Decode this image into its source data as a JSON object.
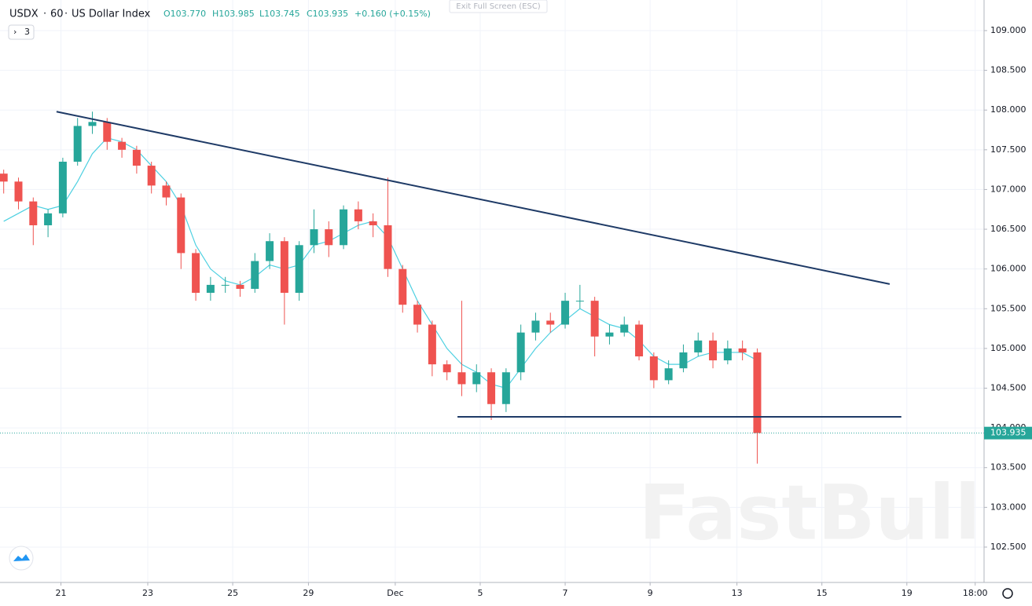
{
  "chart_data": {
    "type": "candlestick",
    "symbol": "USDX",
    "interval": "60",
    "title": "US Dollar Index",
    "ohlc_text": [
      "O103.770",
      "H103.985",
      "L103.745",
      "C103.935"
    ],
    "change_text": "+0.160 (+0.15%)",
    "fullscreen_hint": "Exit Full Screen (ESC)",
    "indicator_count": "3",
    "watermark": "FastBull",
    "up_color": "#26a69a",
    "down_color": "#ef5350",
    "x": [
      2,
      10,
      18,
      26,
      34,
      42,
      50,
      58,
      66,
      74,
      82,
      90,
      98,
      106,
      114,
      122,
      130,
      138,
      146,
      154,
      162,
      170,
      178,
      186,
      194,
      202,
      210,
      218,
      226,
      234,
      242,
      250,
      258,
      266,
      274,
      282,
      290,
      298,
      306,
      314,
      322,
      330,
      338,
      346,
      354,
      362,
      370,
      378,
      386,
      394,
      402,
      410
    ],
    "open": [
      107.2,
      107.1,
      106.85,
      106.55,
      106.7,
      107.35,
      107.8,
      107.85,
      107.6,
      107.5,
      107.3,
      107.05,
      106.9,
      106.2,
      105.7,
      105.8,
      105.8,
      105.75,
      106.1,
      106.35,
      105.7,
      106.3,
      106.5,
      106.3,
      106.75,
      106.6,
      106.55,
      106.0,
      105.55,
      105.3,
      104.8,
      104.7,
      104.55,
      104.7,
      104.3,
      104.7,
      105.2,
      105.35,
      105.3,
      105.6,
      105.6,
      105.15,
      105.2,
      105.3,
      104.9,
      104.6,
      104.75,
      104.95,
      105.1,
      104.85,
      105.0,
      104.95
    ],
    "high": [
      107.25,
      107.15,
      106.9,
      106.75,
      107.4,
      107.9,
      107.98,
      107.9,
      107.65,
      107.55,
      107.35,
      107.1,
      106.95,
      106.25,
      105.9,
      105.9,
      105.85,
      106.2,
      106.45,
      106.4,
      106.35,
      106.75,
      106.6,
      106.8,
      106.85,
      106.7,
      107.15,
      106.05,
      105.6,
      105.35,
      104.85,
      105.6,
      104.8,
      104.75,
      104.75,
      105.3,
      105.45,
      105.45,
      105.7,
      105.8,
      105.65,
      105.3,
      105.4,
      105.35,
      104.95,
      104.85,
      105.05,
      105.2,
      105.2,
      105.1,
      105.1,
      105.0
    ],
    "low": [
      106.95,
      106.75,
      106.3,
      106.4,
      106.65,
      107.3,
      107.7,
      107.5,
      107.4,
      107.2,
      106.95,
      106.8,
      106.0,
      105.6,
      105.6,
      105.7,
      105.65,
      105.7,
      106.0,
      105.3,
      105.6,
      106.2,
      106.15,
      106.25,
      106.5,
      106.4,
      105.9,
      105.45,
      105.2,
      104.65,
      104.6,
      104.4,
      104.45,
      104.1,
      104.2,
      104.6,
      105.1,
      105.2,
      105.25,
      105.5,
      104.9,
      105.05,
      105.15,
      104.85,
      104.5,
      104.55,
      104.7,
      104.9,
      104.75,
      104.8,
      104.85,
      103.55
    ],
    "close": [
      107.1,
      106.85,
      106.55,
      106.7,
      107.35,
      107.8,
      107.85,
      107.6,
      107.5,
      107.3,
      107.05,
      106.9,
      106.2,
      105.7,
      105.8,
      105.8,
      105.75,
      106.1,
      106.35,
      105.7,
      106.3,
      106.5,
      106.3,
      106.75,
      106.6,
      106.55,
      106.0,
      105.55,
      105.3,
      104.8,
      104.7,
      104.55,
      104.7,
      104.3,
      104.7,
      105.2,
      105.35,
      105.3,
      105.6,
      105.6,
      105.15,
      105.2,
      105.3,
      104.9,
      104.6,
      104.75,
      104.95,
      105.1,
      104.85,
      105.0,
      104.95,
      103.935
    ],
    "ma": {
      "color": "#4dd0e1",
      "values": [
        106.6,
        106.7,
        106.8,
        106.75,
        106.8,
        107.1,
        107.45,
        107.65,
        107.6,
        107.5,
        107.3,
        107.1,
        106.8,
        106.3,
        106.0,
        105.85,
        105.8,
        105.9,
        106.05,
        106.0,
        106.05,
        106.3,
        106.35,
        106.45,
        106.55,
        106.6,
        106.4,
        106.0,
        105.6,
        105.3,
        105.0,
        104.8,
        104.7,
        104.55,
        104.5,
        104.75,
        105.0,
        105.2,
        105.35,
        105.5,
        105.4,
        105.3,
        105.25,
        105.1,
        104.9,
        104.8,
        104.8,
        104.9,
        104.95,
        104.95,
        104.95,
        104.85
      ]
    },
    "lines": [
      {
        "color": "#1e3a66",
        "x": [
          30.6,
          481.7
        ],
        "y": [
          107.98,
          105.81
        ]
      },
      {
        "color": "#1e3a66",
        "x": [
          247.7,
          488
        ],
        "y": [
          104.14,
          104.14
        ]
      }
    ],
    "last_price": 103.935,
    "last_price_color": "#26a69a",
    "xlim": [
      0,
      532.8
    ],
    "ylim": [
      102.055,
      109.385
    ],
    "grid": true,
    "xticks": [
      {
        "value": 33,
        "label": "21"
      },
      {
        "value": 80,
        "label": "23"
      },
      {
        "value": 126,
        "label": "25"
      },
      {
        "value": 167,
        "label": "29"
      },
      {
        "value": 214,
        "label": "Dec"
      },
      {
        "value": 260,
        "label": "5"
      },
      {
        "value": 306,
        "label": "7"
      },
      {
        "value": 352,
        "label": "9"
      },
      {
        "value": 399,
        "label": "13"
      },
      {
        "value": 445,
        "label": "15"
      },
      {
        "value": 491,
        "label": "19"
      },
      {
        "value": 528,
        "label": "18:00"
      }
    ],
    "yticks": [
      {
        "value": 102.5,
        "label": "102.500"
      },
      {
        "value": 103,
        "label": "103.000"
      },
      {
        "value": 103.5,
        "label": "103.500"
      },
      {
        "value": 104,
        "label": "104.000"
      },
      {
        "value": 104.5,
        "label": "104.500"
      },
      {
        "value": 105,
        "label": "105.000"
      },
      {
        "value": 105.5,
        "label": "105.500"
      },
      {
        "value": 106,
        "label": "106.000"
      },
      {
        "value": 106.5,
        "label": "106.500"
      },
      {
        "value": 107,
        "label": "107.000"
      },
      {
        "value": 107.5,
        "label": "107.500"
      },
      {
        "value": 108,
        "label": "108.000"
      },
      {
        "value": 108.5,
        "label": "108.500"
      },
      {
        "value": 109,
        "label": "109.000"
      }
    ]
  }
}
